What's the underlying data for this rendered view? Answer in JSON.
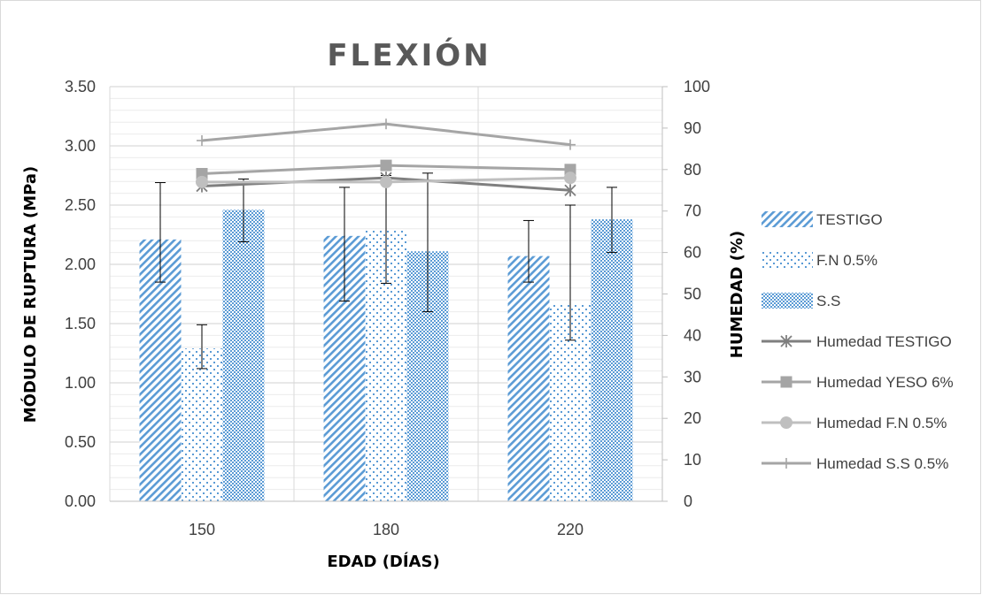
{
  "chart_data": {
    "type": "bar",
    "title": "FLEXIÓN",
    "xlabel": "EDAD (DÍAS)",
    "ylabel": "MÓDULO DE RUPTURA (MPa)",
    "y2label": "HUMEDAD (%)",
    "categories": [
      "150",
      "180",
      "220"
    ],
    "ylim": [
      0,
      3.5
    ],
    "y2lim": [
      0,
      100
    ],
    "yticks": [
      "0.00",
      "0.50",
      "1.00",
      "1.50",
      "2.00",
      "2.50",
      "3.00",
      "3.50"
    ],
    "y2ticks": [
      "0",
      "10",
      "20",
      "30",
      "40",
      "50",
      "60",
      "70",
      "80",
      "90",
      "100"
    ],
    "grid": true,
    "legend_position": "right",
    "bar_series": [
      {
        "name": "TESTIGO",
        "values": [
          2.21,
          2.24,
          2.07
        ],
        "err_low": [
          1.85,
          1.69,
          1.85
        ],
        "err_high": [
          2.69,
          2.65,
          2.37
        ],
        "pattern": "diagonal-stripes"
      },
      {
        "name": "F.N 0.5%",
        "values": [
          1.29,
          2.29,
          1.67
        ],
        "err_low": [
          1.12,
          1.84,
          1.36
        ],
        "err_high": [
          1.49,
          2.75,
          2.5
        ],
        "pattern": "sparse-dots"
      },
      {
        "name": "S.S",
        "values": [
          2.46,
          2.11,
          2.38
        ],
        "err_low": [
          2.19,
          1.6,
          2.1
        ],
        "err_high": [
          2.72,
          2.77,
          2.65
        ],
        "pattern": "dense-checker"
      }
    ],
    "line_series": [
      {
        "name": "Humedad TESTIGO",
        "values": [
          76,
          78,
          75
        ],
        "marker": "asterisk",
        "color": "#7f7f7f"
      },
      {
        "name": "Humedad YESO 6%",
        "values": [
          79,
          81,
          80
        ],
        "marker": "square",
        "color": "#a5a5a5"
      },
      {
        "name": "Humedad F.N 0.5%",
        "values": [
          77,
          77,
          78
        ],
        "marker": "circle",
        "color": "#bfbfbf"
      },
      {
        "name": "Humedad S.S 0.5%",
        "values": [
          87,
          91,
          86
        ],
        "marker": "plus",
        "color": "#a5a5a5"
      }
    ],
    "colors": {
      "bar_blue": "#5b9bd5",
      "text": "#404040",
      "grid": "#d9d9d9"
    }
  }
}
